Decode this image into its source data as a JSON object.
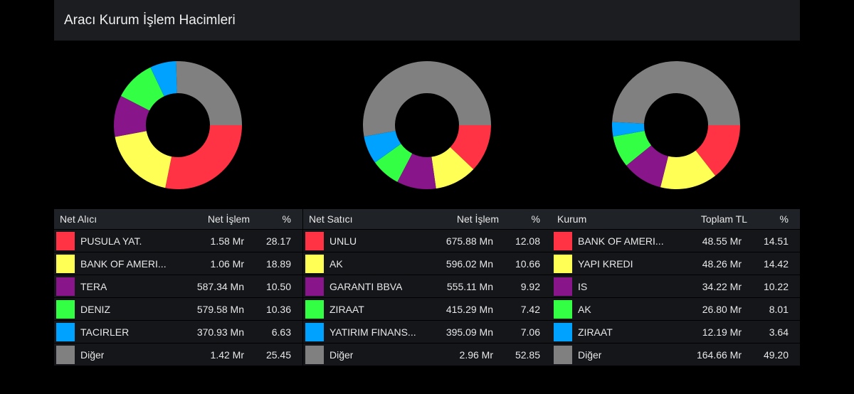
{
  "title": "Aracı Kurum İşlem Hacimleri",
  "colors": [
    "#ff3344",
    "#ffff55",
    "#88158a",
    "#33ff44",
    "#00a2ff",
    "#808080"
  ],
  "chart_data": [
    {
      "type": "pie",
      "title": "Net Alıcı",
      "categories": [
        "PUSULA YAT.",
        "BANK OF AMERI...",
        "TERA",
        "DENIZ",
        "TACIRLER",
        "Diğer"
      ],
      "values": [
        28.17,
        18.89,
        10.5,
        10.36,
        6.63,
        25.45
      ]
    },
    {
      "type": "pie",
      "title": "Net Satıcı",
      "categories": [
        "UNLU",
        "AK",
        "GARANTI BBVA",
        "ZIRAAT",
        "YATIRIM FINANS...",
        "Diğer"
      ],
      "values": [
        12.08,
        10.66,
        9.92,
        7.42,
        7.06,
        52.85
      ]
    },
    {
      "type": "pie",
      "title": "Kurum",
      "categories": [
        "BANK OF AMERI...",
        "YAPI KREDI",
        "IS",
        "AK",
        "ZIRAAT",
        "Diğer"
      ],
      "values": [
        14.51,
        14.42,
        10.22,
        8.01,
        3.64,
        49.2
      ]
    }
  ],
  "tables": [
    {
      "headers": [
        "Net Alıcı",
        "Net İşlem",
        "%"
      ],
      "rows": [
        {
          "name": "PUSULA YAT.",
          "value": "1.58 Mr",
          "pct": "28.17"
        },
        {
          "name": "BANK OF AMERI...",
          "value": "1.06 Mr",
          "pct": "18.89"
        },
        {
          "name": "TERA",
          "value": "587.34 Mn",
          "pct": "10.50"
        },
        {
          "name": "DENIZ",
          "value": "579.58 Mn",
          "pct": "10.36"
        },
        {
          "name": "TACIRLER",
          "value": "370.93 Mn",
          "pct": "6.63"
        },
        {
          "name": "Diğer",
          "value": "1.42 Mr",
          "pct": "25.45"
        }
      ]
    },
    {
      "headers": [
        "Net Satıcı",
        "Net İşlem",
        "%"
      ],
      "rows": [
        {
          "name": "UNLU",
          "value": "675.88 Mn",
          "pct": "12.08"
        },
        {
          "name": "AK",
          "value": "596.02 Mn",
          "pct": "10.66"
        },
        {
          "name": "GARANTI BBVA",
          "value": "555.11 Mn",
          "pct": "9.92"
        },
        {
          "name": "ZIRAAT",
          "value": "415.29 Mn",
          "pct": "7.42"
        },
        {
          "name": "YATIRIM FINANS...",
          "value": "395.09 Mn",
          "pct": "7.06"
        },
        {
          "name": "Diğer",
          "value": "2.96 Mr",
          "pct": "52.85"
        }
      ]
    },
    {
      "headers": [
        "Kurum",
        "Toplam TL",
        "%"
      ],
      "rows": [
        {
          "name": "BANK OF AMERI...",
          "value": "48.55 Mr",
          "pct": "14.51"
        },
        {
          "name": "YAPI KREDI",
          "value": "48.26 Mr",
          "pct": "14.42"
        },
        {
          "name": "IS",
          "value": "34.22 Mr",
          "pct": "10.22"
        },
        {
          "name": "AK",
          "value": "26.80 Mr",
          "pct": "8.01"
        },
        {
          "name": "ZIRAAT",
          "value": "12.19 Mr",
          "pct": "3.64"
        },
        {
          "name": "Diğer",
          "value": "164.66 Mr",
          "pct": "49.20"
        }
      ]
    }
  ]
}
